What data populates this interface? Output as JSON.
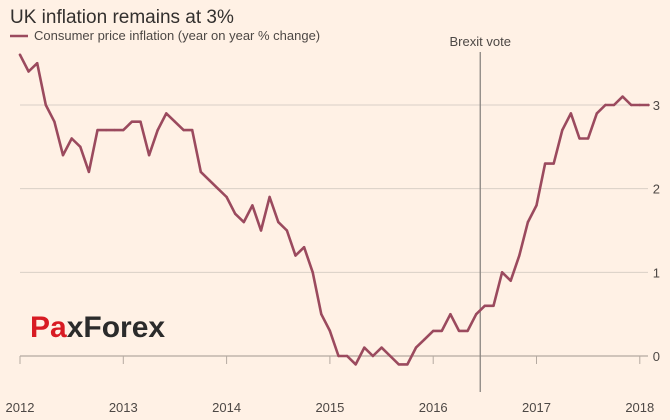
{
  "colors": {
    "background": "#fff1e5",
    "series": "#9b4a5e",
    "brexit_line": "#8a8580",
    "watermark_red": "#d81b23",
    "watermark_dark": "#2b2b2b"
  },
  "watermark": {
    "part1": "Pa",
    "part2": "x",
    "part3": "F",
    "part4": "orex"
  },
  "chart_data": {
    "type": "line",
    "title": "UK inflation remains at 3%",
    "series": [
      {
        "name": "Consumer price inflation (year on year % change)",
        "x": [
          "2012-01",
          "2012-02",
          "2012-03",
          "2012-04",
          "2012-05",
          "2012-06",
          "2012-07",
          "2012-08",
          "2012-09",
          "2012-10",
          "2012-11",
          "2012-12",
          "2013-01",
          "2013-02",
          "2013-03",
          "2013-04",
          "2013-05",
          "2013-06",
          "2013-07",
          "2013-08",
          "2013-09",
          "2013-10",
          "2013-11",
          "2013-12",
          "2014-01",
          "2014-02",
          "2014-03",
          "2014-04",
          "2014-05",
          "2014-06",
          "2014-07",
          "2014-08",
          "2014-09",
          "2014-10",
          "2014-11",
          "2014-12",
          "2015-01",
          "2015-02",
          "2015-03",
          "2015-04",
          "2015-05",
          "2015-06",
          "2015-07",
          "2015-08",
          "2015-09",
          "2015-10",
          "2015-11",
          "2015-12",
          "2016-01",
          "2016-02",
          "2016-03",
          "2016-04",
          "2016-05",
          "2016-06",
          "2016-07",
          "2016-08",
          "2016-09",
          "2016-10",
          "2016-11",
          "2016-12",
          "2017-01",
          "2017-02",
          "2017-03",
          "2017-04",
          "2017-05",
          "2017-06",
          "2017-07",
          "2017-08",
          "2017-09",
          "2017-10",
          "2017-11",
          "2017-12",
          "2018-01",
          "2018-02"
        ],
        "values": [
          3.6,
          3.4,
          3.5,
          3.0,
          2.8,
          2.4,
          2.6,
          2.5,
          2.2,
          2.7,
          2.7,
          2.7,
          2.7,
          2.8,
          2.8,
          2.4,
          2.7,
          2.9,
          2.8,
          2.7,
          2.7,
          2.2,
          2.1,
          2.0,
          1.9,
          1.7,
          1.6,
          1.8,
          1.5,
          1.9,
          1.6,
          1.5,
          1.2,
          1.3,
          1.0,
          0.5,
          0.3,
          0.0,
          0.0,
          -0.1,
          0.1,
          0.0,
          0.1,
          0.0,
          -0.1,
          -0.1,
          0.1,
          0.2,
          0.3,
          0.3,
          0.5,
          0.3,
          0.3,
          0.5,
          0.6,
          0.6,
          1.0,
          0.9,
          1.2,
          1.6,
          1.8,
          2.3,
          2.3,
          2.7,
          2.9,
          2.6,
          2.6,
          2.9,
          3.0,
          3.0,
          3.1,
          3.0,
          3.0,
          3.0
        ]
      }
    ],
    "xlabel": "",
    "ylabel": "",
    "x_ticks": [
      "2012",
      "2013",
      "2014",
      "2015",
      "2016",
      "2017",
      "2018"
    ],
    "y_ticks": [
      0,
      1,
      2,
      3
    ],
    "ylim": [
      -0.3,
      3.7
    ],
    "grid": true,
    "legend_position": "top-left",
    "annotations": [
      {
        "label": "Brexit vote",
        "x": "2016-06"
      }
    ]
  }
}
